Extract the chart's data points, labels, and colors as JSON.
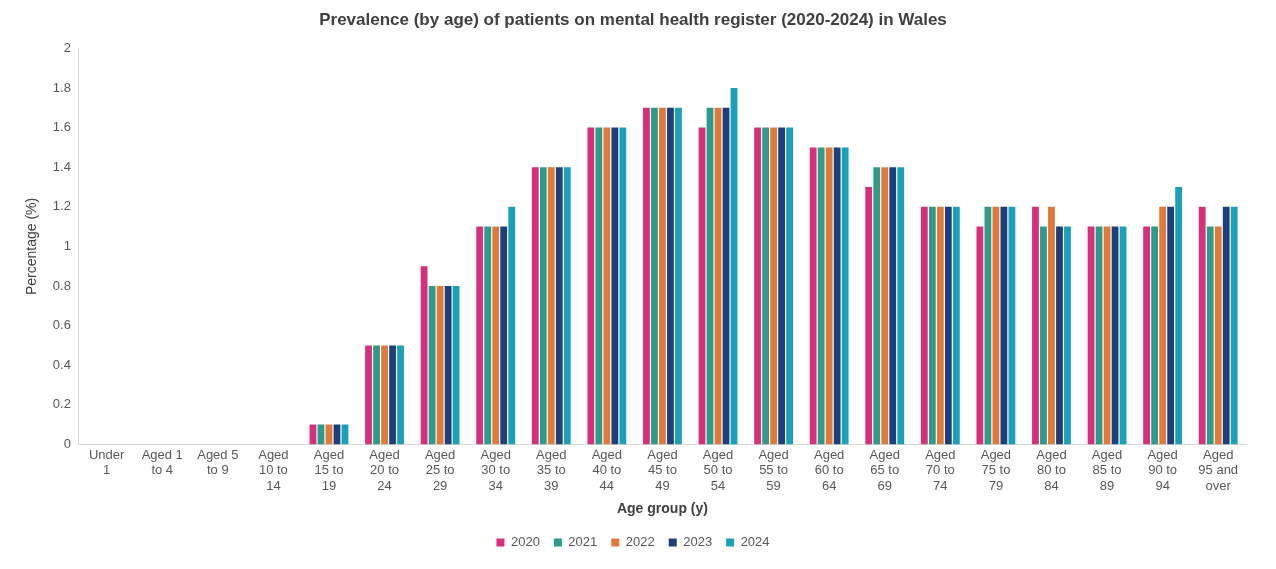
{
  "chart_data": {
    "type": "bar",
    "title": "Prevalence (by age) of patients on mental health register (2020-2024) in Wales",
    "xlabel": "Age group (y)",
    "ylabel": "Percentage (%)",
    "categories": [
      "Under 1",
      "Aged 1 to 4",
      "Aged 5 to 9",
      "Aged 10 to 14",
      "Aged 15 to 19",
      "Aged 20 to 24",
      "Aged 25 to 29",
      "Aged 30 to 34",
      "Aged 35 to 39",
      "Aged 40 to 44",
      "Aged 45 to 49",
      "Aged 50 to 54",
      "Aged 55 to 59",
      "Aged 60 to 64",
      "Aged 65 to 69",
      "Aged 70 to 74",
      "Aged 75 to 79",
      "Aged 80 to 84",
      "Aged 85 to 89",
      "Aged 90 to 94",
      "Aged 95 and over"
    ],
    "series": [
      {
        "name": "2020",
        "color": "#d6307a",
        "values": [
          0,
          0,
          0,
          0,
          0.1,
          0.5,
          0.9,
          1.1,
          1.4,
          1.6,
          1.7,
          1.6,
          1.6,
          1.5,
          1.3,
          1.2,
          1.1,
          1.2,
          1.1,
          1.1,
          1.2
        ]
      },
      {
        "name": "2021",
        "color": "#2e9a8a",
        "values": [
          0,
          0,
          0,
          0,
          0.1,
          0.5,
          0.8,
          1.1,
          1.4,
          1.6,
          1.7,
          1.7,
          1.6,
          1.5,
          1.4,
          1.2,
          1.2,
          1.1,
          1.1,
          1.1,
          1.1
        ]
      },
      {
        "name": "2022",
        "color": "#e07a3a",
        "values": [
          0,
          0,
          0,
          0,
          0.1,
          0.5,
          0.8,
          1.1,
          1.4,
          1.6,
          1.7,
          1.7,
          1.6,
          1.5,
          1.4,
          1.2,
          1.2,
          1.2,
          1.1,
          1.2,
          1.1
        ]
      },
      {
        "name": "2023",
        "color": "#1f3f7a",
        "values": [
          0,
          0,
          0,
          0,
          0.1,
          0.5,
          0.8,
          1.1,
          1.4,
          1.6,
          1.7,
          1.7,
          1.6,
          1.5,
          1.4,
          1.2,
          1.2,
          1.1,
          1.1,
          1.2,
          1.2
        ]
      },
      {
        "name": "2024",
        "color": "#1aa0b8",
        "values": [
          0,
          0,
          0,
          0,
          0.1,
          0.5,
          0.8,
          1.2,
          1.4,
          1.6,
          1.7,
          1.8,
          1.6,
          1.5,
          1.4,
          1.2,
          1.2,
          1.1,
          1.1,
          1.3,
          1.2
        ]
      }
    ],
    "ylim": [
      0,
      2
    ],
    "yticks": [
      0,
      0.2,
      0.4,
      0.6,
      0.8,
      1,
      1.2,
      1.4,
      1.6,
      1.8,
      2
    ],
    "grid": false,
    "legend": "bottom"
  }
}
